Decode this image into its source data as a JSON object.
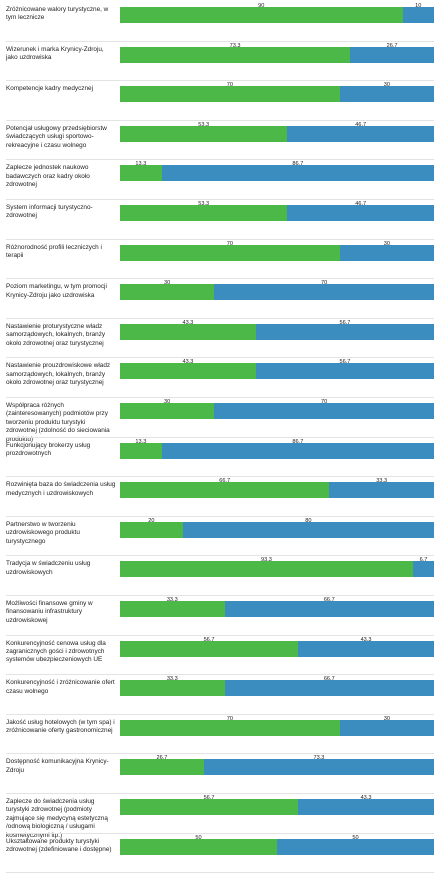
{
  "chart_data": {
    "type": "bar",
    "orientation": "horizontal",
    "stacked": true,
    "categories": [
      "Zróżnicowane walory turystyczne, w tym lecznicze",
      "Wizerunek i marka Krynicy-Zdroju, jako uzdrowiska",
      "Kompetencje kadry medycznej",
      "Potencjał usługowy przedsiębiorstw świadczących usługi sportowo-rekreacyjne i czasu wolnego",
      "Zaplecze jednostek naukowo badawczych oraz kadry około zdrowotnej",
      "System informacji turystyczno-zdrowotnej",
      "Różnorodność profili leczniczych i terapii",
      "Poziom marketingu, w tym promocji Krynicy-Zdroju jako uzdrowiska",
      "Nastawienie proturystyczne władz samorządowych, lokalnych, branży około zdrowotnej oraz turystycznej",
      "Nastawienie prouzdrowiskowe władz samorządowych, lokalnych, branży około zdrowotnej oraz turystycznej",
      "Współpraca różnych (zainteresowanych) podmiotów przy tworzeniu produktu turystyki zdrowotnej (zdolność do sieciowania produktu)",
      "Funkcjonujący brokerzy usług prozdrowotnych",
      "Rozwinięta baza do świadczenia usług medycznych i uzdrowiskowych",
      "Partnerstwo w tworzeniu uzdrowiskowego produktu turystycznego",
      "Tradycja w świadczeniu usług uzdrowiskowych",
      "Możliwości finansowe gminy w finansowaniu infrastruktury uzdrowiskowej",
      "Konkurencyjność cenowa usług dla zagranicznych gości i zdrowotnych systemów ubezpieczeniowych UE",
      "Konkurencyjność i zróżnicowanie ofert czasu wolnego",
      "Jakość usług hotelowych (w tym spa) i zróżnicowanie oferty gastronomicznej",
      "Dostępność komunikacyjna Krynicy-Zdroju",
      "Zaplecze do świadczenia usług turystyki zdrowotnej (podmioty zajmujące się medycyną estetyczną /odnową biologiczną / usługami kosmetycznymi itp.)",
      "Ukształtowane produkty turystyki zdrowotnej (zdefiniowane i dostępne)"
    ],
    "series": [
      {
        "color": "#4cb848",
        "values": [
          "90",
          "73,3",
          "70",
          "53,3",
          "13,3",
          "53,3",
          "70",
          "30",
          "43,3",
          "43,3",
          "30",
          "13,3",
          "66,7",
          "20",
          "93,3",
          "33,3",
          "56,7",
          "33,3",
          "70",
          "26,7",
          "56,7",
          "50"
        ]
      },
      {
        "color": "#3b8cbf",
        "values": [
          "10",
          "26,7",
          "30",
          "46,7",
          "86,7",
          "46,7",
          "30",
          "70",
          "56,7",
          "56,7",
          "70",
          "86,7",
          "33,3",
          "80",
          "6,7",
          "66,7",
          "43,3",
          "66,7",
          "30",
          "73,3",
          "43,3",
          "50"
        ]
      }
    ],
    "xlim": [
      0,
      100
    ],
    "grid": false,
    "legend": "none",
    "title": "",
    "xlabel": "",
    "ylabel": ""
  }
}
